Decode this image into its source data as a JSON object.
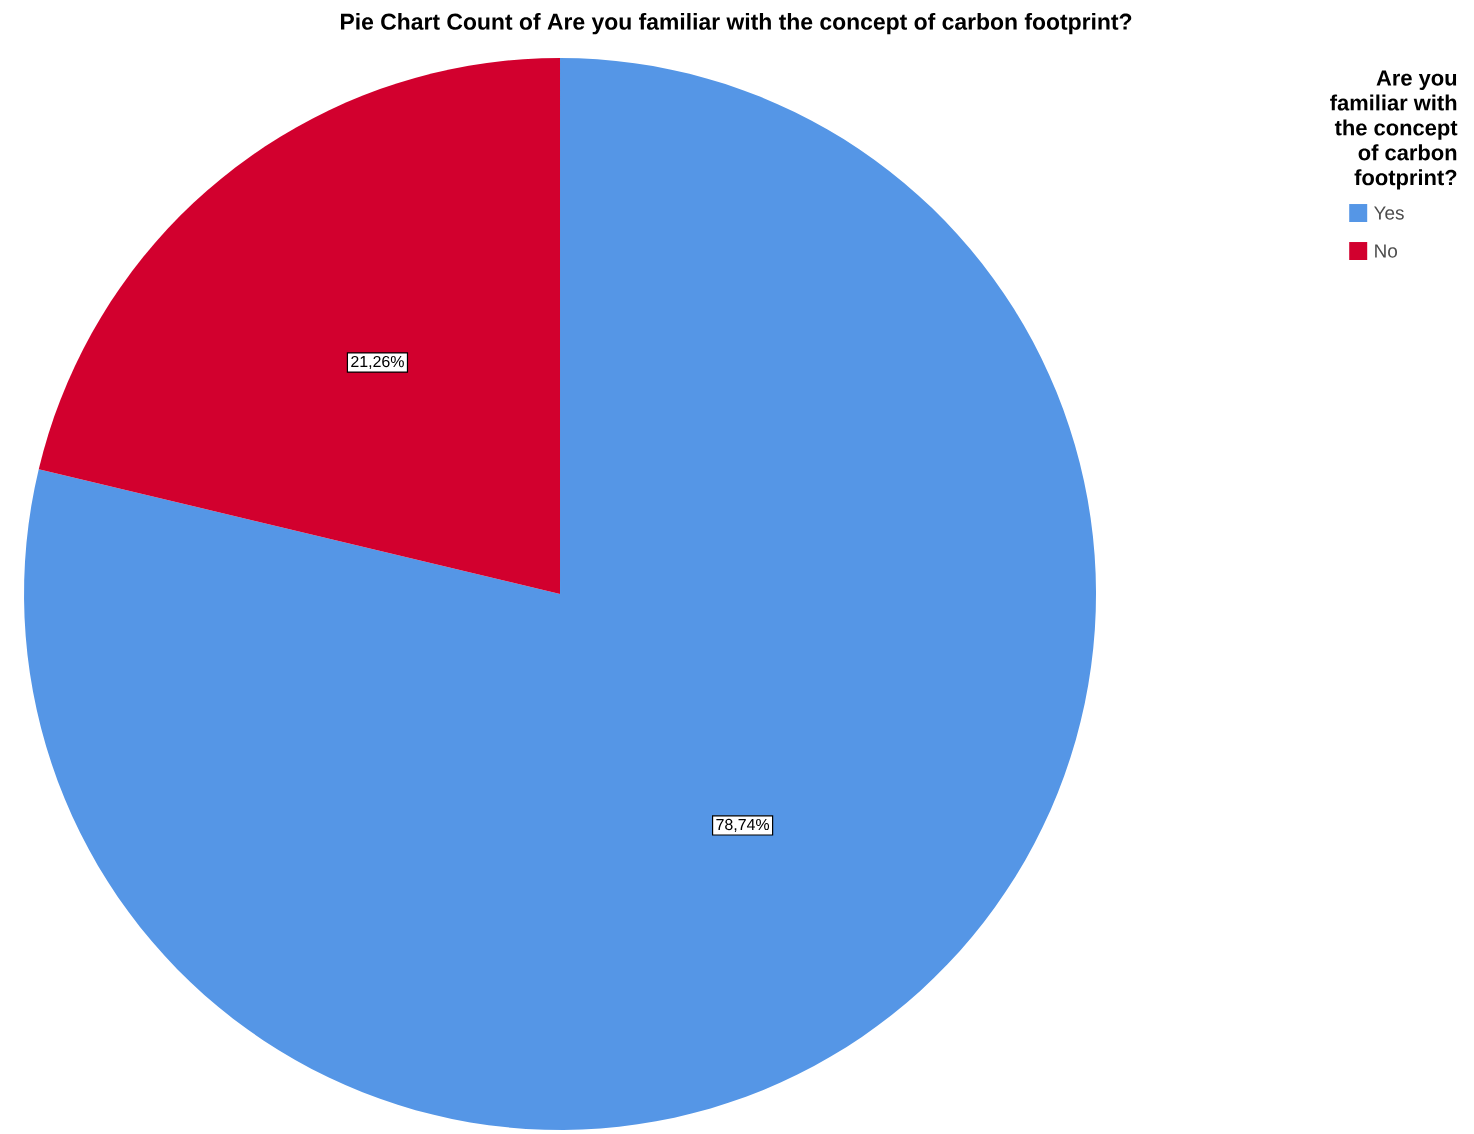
{
  "chart_data": {
    "type": "pie",
    "title": "Pie Chart Count of Are you familiar with the concept of carbon footprint?",
    "legend_title": "Are you familiar with the concept of carbon footprint?",
    "categories": [
      "Yes",
      "No"
    ],
    "values": [
      78.74,
      21.26
    ],
    "colors": [
      "#5596e6",
      "#d2002e"
    ],
    "value_labels": [
      "78,74%",
      "21,26%"
    ],
    "legend": "top right"
  }
}
